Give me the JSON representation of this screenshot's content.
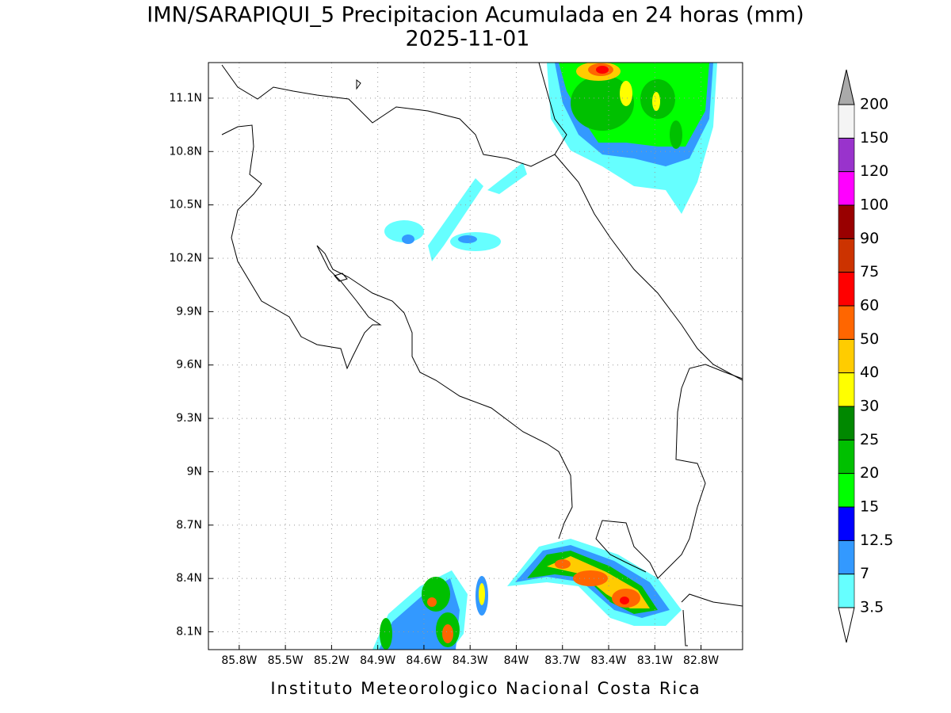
{
  "map": {
    "title": "IMN/SARAPIQUI_5 Precipitacion Acumulada en 24 horas (mm)",
    "date": "2025-11-01",
    "lon_range": [
      -86,
      -82.53
    ],
    "lat_range": [
      8,
      11.3
    ],
    "lon_ticks": [
      {
        "value": -85.8,
        "label": "85.8W"
      },
      {
        "value": -85.5,
        "label": "85.5W"
      },
      {
        "value": -85.2,
        "label": "85.2W"
      },
      {
        "value": -84.9,
        "label": "84.9W"
      },
      {
        "value": -84.6,
        "label": "84.6W"
      },
      {
        "value": -84.3,
        "label": "84.3W"
      },
      {
        "value": -84,
        "label": "84W"
      },
      {
        "value": -83.7,
        "label": "83.7W"
      },
      {
        "value": -83.4,
        "label": "83.4W"
      },
      {
        "value": -83.1,
        "label": "83.1W"
      },
      {
        "value": -82.8,
        "label": "82.8W"
      }
    ],
    "lat_ticks": [
      {
        "value": 8.1,
        "label": "8.1N"
      },
      {
        "value": 8.4,
        "label": "8.4N"
      },
      {
        "value": 8.7,
        "label": "8.7N"
      },
      {
        "value": 9,
        "label": "9N"
      },
      {
        "value": 9.3,
        "label": "9.3N"
      },
      {
        "value": 9.6,
        "label": "9.6N"
      },
      {
        "value": 9.9,
        "label": "9.9N"
      },
      {
        "value": 10.2,
        "label": "10.2N"
      },
      {
        "value": 10.5,
        "label": "10.5N"
      },
      {
        "value": 10.8,
        "label": "10.8N"
      },
      {
        "value": 11.1,
        "label": "11.1N"
      }
    ],
    "grid": true,
    "colorbar": {
      "levels": [
        3.5,
        7,
        12.5,
        15,
        20,
        25,
        30,
        40,
        50,
        60,
        75,
        90,
        100,
        120,
        150,
        200
      ],
      "colors": [
        "#66ffff",
        "#3399ff",
        "#0000ff",
        "#00ff00",
        "#00c000",
        "#008800",
        "#ffff00",
        "#ffcc00",
        "#ff6600",
        "#ff0000",
        "#cc3300",
        "#990000",
        "#ff00ff",
        "#9933cc",
        "#f4f4f4"
      ],
      "under_color": "#ffffff",
      "over_color": "#aaaaaa"
    },
    "footer": "Instituto Meteorologico Nacional Costa Rica"
  }
}
